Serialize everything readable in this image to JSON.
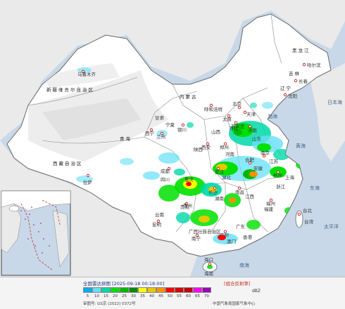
{
  "map": {
    "oceans": {
      "bohai": "渤海",
      "yellow_sea": "黄海",
      "east_china_sea": "东海",
      "pacific": "太平洋",
      "japan_sea": "日本海",
      "south_china_sea": "南海"
    },
    "regions": {
      "heilongjiang": "黑龙江",
      "jilin": "吉林",
      "liaoning": "辽宁",
      "xinjiang": "新疆维吾尔自治区",
      "tibet": "西藏自治区",
      "qinghai": "青海",
      "inner_mongolia": "内蒙古",
      "gansu": "甘肃",
      "ningxia": "宁夏",
      "shaanxi": "陕西",
      "shanxi": "山西",
      "hebei": "河北",
      "shandong": "山东",
      "henan": "河南",
      "sichuan": "四川",
      "chongqing": "重庆",
      "hubei": "湖北",
      "anhui": "安徽",
      "jiangsu": "江苏",
      "shanghai": "上海",
      "zhejiang": "浙江",
      "hunan": "湖南",
      "jiangxi": "江西",
      "fujian": "福建",
      "taiwan": "台湾",
      "guizhou": "贵州",
      "yunnan": "云南",
      "guangxi": "广西壮族自治区",
      "guangdong": "广东",
      "hainan": "海南",
      "hong_kong": "香港",
      "macau": "澳门",
      "beijing": "北京",
      "tianjin": "天津"
    },
    "cities": {
      "harbin": "哈尔滨",
      "changchun": "长春",
      "shenyang": "沈阳",
      "urumqi": "乌鲁木齐",
      "hohhot": "呼和浩特",
      "lhasa": "拉萨",
      "xining": "西宁",
      "lanzhou": "兰州",
      "yinchuan": "银川",
      "xian": "西安",
      "taiyuan": "太原",
      "shijiazhuang": "石家庄",
      "jinan": "济南",
      "zhengzhou": "郑州",
      "chengdu": "成都",
      "wuhan": "武汉",
      "hefei": "合肥",
      "nanjing": "南京",
      "hangzhou": "杭州",
      "changsha": "长沙",
      "nanchang": "南昌",
      "fuzhou": "福州",
      "taipei": "台北",
      "guiyang": "贵阳",
      "kunming": "昆明",
      "nanning": "南宁",
      "guangzhou": "广州",
      "haikou": "海口"
    }
  },
  "legend": {
    "title": "全国雷达拼图 [2025-09-18 00:18:00]",
    "product": "[组合反射率]",
    "unit": "dBZ",
    "levels": [
      "5",
      "10",
      "15",
      "20",
      "25",
      "30",
      "35",
      "40",
      "45",
      "50",
      "55",
      "60",
      "65",
      "70"
    ],
    "colors": [
      "#00acf4",
      "#63e0f6",
      "#00d8a8",
      "#00e000",
      "#00b800",
      "#008c00",
      "#ffff00",
      "#e8c800",
      "#ff9000",
      "#ff0000",
      "#d80000",
      "#c00000",
      "#ff00f0",
      "#9c00b4"
    ],
    "approval": "审图号: GS京 (2022) 0372号",
    "agency": "中国气象局国家气象中心"
  },
  "colors": {
    "land": "#ffffff",
    "sea": "#c8d8e8",
    "outside": "#e8e8e8",
    "border": "#666666"
  }
}
